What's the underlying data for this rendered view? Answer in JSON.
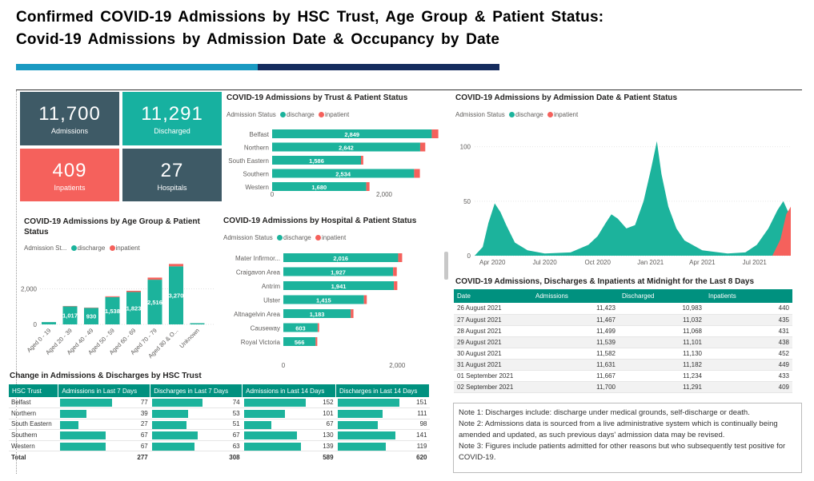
{
  "header": {
    "title_line1": "Confirmed COVID-19 Admissions by HSC Trust, Age Group & Patient Status:",
    "title_line2": "Covid-19 Admissions by Admission Date & Occupancy by Date"
  },
  "colors": {
    "discharge": "#1cb39c",
    "inpatient": "#f5615c",
    "kpi_dark": "#3e5a66",
    "kpi_teal": "#17b1a0",
    "kpi_red": "#f5615c",
    "header_bar": "#00917f"
  },
  "kpis": [
    {
      "value": "11,700",
      "label": "Admissions"
    },
    {
      "value": "11,291",
      "label": "Discharged"
    },
    {
      "value": "409",
      "label": "Inpatients"
    },
    {
      "value": "27",
      "label": "Hospitals"
    }
  ],
  "legend": {
    "prefix_full": "Admission Status",
    "prefix_short": "Admission St...",
    "discharge": "discharge",
    "inpatient": "inpatient"
  },
  "trust_chart": {
    "title": "COVID-19 Admissions by Trust & Patient Status",
    "chart_data": {
      "type": "bar",
      "orientation": "horizontal-stacked",
      "categories": [
        "Belfast",
        "Northern",
        "South Eastern",
        "Southern",
        "Western"
      ],
      "series": [
        {
          "name": "discharge",
          "values": [
            2849,
            2642,
            1586,
            2534,
            1680
          ]
        },
        {
          "name": "inpatient",
          "values": [
            117,
            91,
            40,
            103,
            58
          ]
        }
      ],
      "labels": [
        "2,849",
        "2,642",
        "1,586",
        "2,534",
        "1,680"
      ],
      "xticks": [
        0,
        2000
      ],
      "xtick_labels": [
        "0",
        "2,000"
      ],
      "xlim": [
        0,
        3000
      ]
    }
  },
  "age_chart": {
    "title_line1": "COVID-19 Admissions by Age Group & Patient",
    "title_line2": "Status",
    "chart_data": {
      "type": "bar",
      "orientation": "vertical-stacked",
      "categories": [
        "Aged 0 - 19",
        "Aged 20 - 39",
        "Aged 40 - 49",
        "Aged 50 - 59",
        "Aged 60 - 69",
        "Aged 70 - 79",
        "Aged 80 & O...",
        "Unknown"
      ],
      "series": [
        {
          "name": "discharge",
          "values": [
            130,
            1017,
            930,
            1538,
            1823,
            2516,
            3270,
            67
          ]
        },
        {
          "name": "inpatient",
          "values": [
            2,
            20,
            18,
            45,
            70,
            120,
            135,
            1
          ]
        }
      ],
      "labels": [
        "",
        "1,017",
        "930",
        "1,538",
        "1,823",
        "2,516",
        "3,270",
        ""
      ],
      "yticks": [
        0,
        2000
      ],
      "ytick_labels": [
        "0",
        "2,000"
      ],
      "ylim": [
        0,
        3600
      ]
    }
  },
  "hospital_chart": {
    "title": "COVID-19 Admissions by Hospital & Patient Status",
    "chart_data": {
      "type": "bar",
      "orientation": "horizontal-stacked",
      "categories": [
        "Mater Infirmor...",
        "Craigavon Area",
        "Antrim",
        "Ulster",
        "Altnagelvin Area",
        "Causeway",
        "Royal Victoria"
      ],
      "series": [
        {
          "name": "discharge",
          "values": [
            2016,
            1927,
            1941,
            1415,
            1183,
            603,
            566
          ]
        },
        {
          "name": "inpatient",
          "values": [
            70,
            65,
            60,
            50,
            48,
            25,
            30
          ]
        }
      ],
      "labels": [
        "2,016",
        "1,927",
        "1,941",
        "1,415",
        "1,183",
        "603",
        "566"
      ],
      "xticks": [
        0,
        2000
      ],
      "xtick_labels": [
        "0",
        "2,000"
      ],
      "xlim": [
        0,
        2600
      ]
    }
  },
  "date_chart": {
    "title": "COVID-19 Admissions by Admission Date & Patient Status",
    "chart_data": {
      "type": "area",
      "x_start": "2020-03-01",
      "x_end": "2021-09-02",
      "xtick_labels": [
        "Apr 2020",
        "Jul 2020",
        "Oct 2020",
        "Jan 2021",
        "Apr 2021",
        "Jul 2021"
      ],
      "yticks": [
        0,
        50,
        100
      ],
      "ytick_labels": [
        "0",
        "50",
        "100"
      ],
      "ylim": [
        0,
        110
      ],
      "series": [
        {
          "name": "discharge",
          "points": [
            [
              "2020-03-01",
              0
            ],
            [
              "2020-03-15",
              8
            ],
            [
              "2020-03-25",
              30
            ],
            [
              "2020-04-05",
              48
            ],
            [
              "2020-04-15",
              40
            ],
            [
              "2020-04-25",
              28
            ],
            [
              "2020-05-10",
              12
            ],
            [
              "2020-06-01",
              5
            ],
            [
              "2020-07-01",
              2
            ],
            [
              "2020-08-15",
              3
            ],
            [
              "2020-09-15",
              10
            ],
            [
              "2020-10-01",
              18
            ],
            [
              "2020-10-15",
              30
            ],
            [
              "2020-10-25",
              38
            ],
            [
              "2020-11-05",
              34
            ],
            [
              "2020-11-20",
              25
            ],
            [
              "2020-12-05",
              28
            ],
            [
              "2020-12-20",
              50
            ],
            [
              "2021-01-02",
              80
            ],
            [
              "2021-01-08",
              95
            ],
            [
              "2021-01-12",
              105
            ],
            [
              "2021-01-20",
              75
            ],
            [
              "2021-02-01",
              45
            ],
            [
              "2021-02-15",
              25
            ],
            [
              "2021-03-01",
              14
            ],
            [
              "2021-04-01",
              5
            ],
            [
              "2021-05-15",
              2
            ],
            [
              "2021-06-15",
              3
            ],
            [
              "2021-07-05",
              10
            ],
            [
              "2021-07-25",
              25
            ],
            [
              "2021-08-10",
              42
            ],
            [
              "2021-08-20",
              50
            ],
            [
              "2021-09-02",
              35
            ]
          ]
        },
        {
          "name": "inpatient",
          "points": [
            [
              "2021-08-01",
              0
            ],
            [
              "2021-08-15",
              15
            ],
            [
              "2021-08-25",
              38
            ],
            [
              "2021-09-02",
              45
            ]
          ]
        }
      ]
    }
  },
  "change_table": {
    "title": "Change in Admissions & Discharges by HSC Trust",
    "columns": [
      "HSC Trust",
      "Admissions in Last 7 Days",
      "Discharges in Last 7 Days",
      "Admissions in Last 14 Days",
      "Discharges in Last 14 Days"
    ],
    "rows": [
      {
        "name": "Belfast",
        "values": [
          77,
          74,
          152,
          151
        ]
      },
      {
        "name": "Northern",
        "values": [
          39,
          53,
          101,
          111
        ]
      },
      {
        "name": "South Eastern",
        "values": [
          27,
          51,
          67,
          98
        ]
      },
      {
        "name": "Southern",
        "values": [
          67,
          67,
          130,
          141
        ]
      },
      {
        "name": "Western",
        "values": [
          67,
          63,
          139,
          119
        ]
      }
    ],
    "total": {
      "name": "Total",
      "values": [
        277,
        308,
        589,
        620
      ]
    }
  },
  "midnight_table": {
    "title": "COVID-19 Admissions, Discharges & Inpatients at Midnight for the Last 8 Days",
    "columns": [
      "Date",
      "Admissions",
      "Discharged",
      "Inpatients"
    ],
    "rows": [
      [
        "26 August 2021",
        "11,423",
        "10,983",
        "440"
      ],
      [
        "27 August 2021",
        "11,467",
        "11,032",
        "435"
      ],
      [
        "28 August 2021",
        "11,499",
        "11,068",
        "431"
      ],
      [
        "29 August 2021",
        "11,539",
        "11,101",
        "438"
      ],
      [
        "30 August 2021",
        "11,582",
        "11,130",
        "452"
      ],
      [
        "31 August 2021",
        "11,631",
        "11,182",
        "449"
      ],
      [
        "01 September 2021",
        "11,667",
        "11,234",
        "433"
      ],
      [
        "02 September 2021",
        "11,700",
        "11,291",
        "409"
      ]
    ]
  },
  "notes": {
    "note1_label": "Note 1:",
    "note1": " Discharges include: discharge under medical grounds, self-discharge or death.",
    "note2_label": "Note 2:",
    "note2": " Admissions data is sourced from a live administrative system which is continually being amended and updated, as such previous days' admission data may be revised.",
    "note3_label": "Note 3:",
    "note3": " Figures include patients admitted for other reasons but who subsequently test positive for COVID-19."
  }
}
